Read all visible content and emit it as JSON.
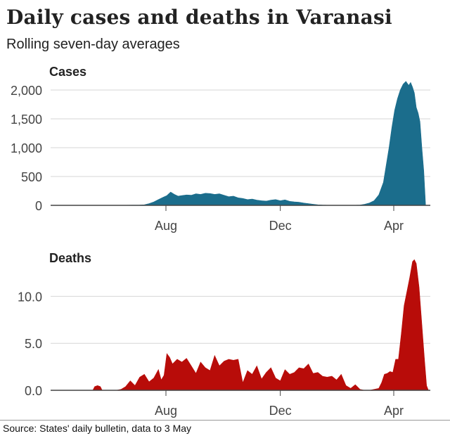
{
  "title": "Daily cases and deaths in Varanasi",
  "subtitle": "Rolling seven-day averages",
  "source": "Source: States' daily bulletin, data to 3 May",
  "chart_data": [
    {
      "type": "area",
      "title": "Cases",
      "color": "#1b6d8c",
      "ylim": [
        0,
        2000
      ],
      "yticks": [
        0,
        500,
        1000,
        1500,
        2000
      ],
      "ytick_labels": [
        "0",
        "500",
        "1,000",
        "1,500",
        "2,000"
      ],
      "xlim": [
        0,
        405
      ],
      "xticks": [
        123,
        245,
        366
      ],
      "xtick_labels": [
        "Aug",
        "Dec",
        "Apr"
      ],
      "grid": true,
      "x": [
        0,
        60,
        80,
        95,
        100,
        105,
        110,
        115,
        120,
        124,
        128,
        132,
        136,
        140,
        145,
        150,
        155,
        160,
        165,
        170,
        175,
        180,
        185,
        190,
        195,
        200,
        205,
        210,
        215,
        220,
        225,
        230,
        235,
        240,
        245,
        250,
        255,
        260,
        265,
        270,
        275,
        280,
        285,
        290,
        300,
        320,
        330,
        335,
        340,
        345,
        350,
        355,
        358,
        361,
        364,
        367,
        370,
        373,
        376,
        379,
        382,
        384,
        386,
        388,
        390,
        392,
        394,
        396,
        398,
        400,
        402
      ],
      "values": [
        0,
        0,
        2,
        5,
        10,
        30,
        60,
        100,
        140,
        170,
        230,
        190,
        160,
        170,
        180,
        175,
        200,
        190,
        210,
        205,
        190,
        200,
        175,
        150,
        160,
        130,
        120,
        100,
        110,
        90,
        80,
        75,
        90,
        100,
        80,
        95,
        70,
        60,
        55,
        40,
        30,
        20,
        10,
        5,
        0,
        0,
        5,
        20,
        40,
        80,
        180,
        400,
        700,
        1000,
        1350,
        1650,
        1850,
        2000,
        2100,
        2150,
        2080,
        2130,
        2050,
        1950,
        1700,
        1600,
        1450,
        1000,
        600,
        0,
        0
      ]
    },
    {
      "type": "area",
      "title": "Deaths",
      "color": "#b80c09",
      "ylim": [
        0,
        14
      ],
      "yticks": [
        0,
        5,
        10
      ],
      "ytick_labels": [
        "0.0",
        "5.0",
        "10.0"
      ],
      "xlim": [
        0,
        405
      ],
      "xticks": [
        123,
        245,
        366
      ],
      "xtick_labels": [
        "Aug",
        "Dec",
        "Apr"
      ],
      "grid": true,
      "x": [
        0,
        45,
        47,
        50,
        53,
        55,
        70,
        75,
        80,
        85,
        90,
        95,
        100,
        105,
        110,
        115,
        118,
        121,
        124,
        127,
        130,
        135,
        140,
        145,
        150,
        155,
        160,
        165,
        170,
        175,
        180,
        185,
        190,
        195,
        200,
        205,
        210,
        215,
        220,
        225,
        230,
        235,
        240,
        245,
        250,
        255,
        260,
        265,
        270,
        275,
        280,
        285,
        290,
        295,
        300,
        305,
        310,
        315,
        320,
        325,
        330,
        335,
        340,
        345,
        350,
        353,
        356,
        359,
        362,
        365,
        368,
        371,
        374,
        377,
        380,
        383,
        386,
        388,
        390,
        393,
        396,
        399,
        401,
        403
      ],
      "values": [
        0,
        0,
        0.4,
        0.5,
        0.4,
        0,
        0,
        0.1,
        0.4,
        1.0,
        0.5,
        1.4,
        1.7,
        0.9,
        1.3,
        2.2,
        1.1,
        1.6,
        3.9,
        3.5,
        2.8,
        3.3,
        3.0,
        3.4,
        2.6,
        1.8,
        3.0,
        2.4,
        2.1,
        3.7,
        2.6,
        3.1,
        3.3,
        3.2,
        3.3,
        0.8,
        2.1,
        1.7,
        2.6,
        1.2,
        1.9,
        2.4,
        1.3,
        1.0,
        2.2,
        1.7,
        1.9,
        2.4,
        2.3,
        2.8,
        1.8,
        1.9,
        1.5,
        1.4,
        1.5,
        1.1,
        1.7,
        0.5,
        0.2,
        0.6,
        0.1,
        0,
        0,
        0.1,
        0.2,
        0.8,
        1.7,
        1.8,
        2.0,
        1.9,
        3.3,
        3.3,
        6.0,
        9.0,
        10.5,
        12.0,
        13.7,
        13.9,
        13.5,
        11.0,
        7.0,
        3.0,
        0.5,
        0
      ]
    }
  ]
}
